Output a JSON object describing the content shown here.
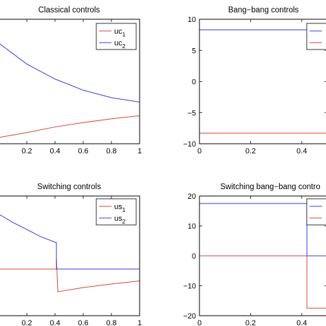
{
  "colors": {
    "series_red": "#d9423a",
    "series_blue": "#3b37d8",
    "axis": "#000000",
    "background": "#ffffff"
  },
  "chart_data": [
    {
      "type": "line",
      "title": "Classical controls",
      "xlabel": "",
      "ylabel": "",
      "xlim": [
        0,
        1
      ],
      "xticks": [
        0.2,
        0.4,
        0.6,
        0.8,
        1
      ],
      "xtick_labels": [
        "0.2",
        "0.4",
        "0.6",
        "0.8",
        "1"
      ],
      "yticks": [],
      "ytick_labels": [],
      "ylim": [
        0,
        1
      ],
      "grid": false,
      "legend": {
        "placement": "top-right",
        "entries": [
          {
            "base": "uc",
            "sub": "1"
          },
          {
            "base": "uc",
            "sub": "2"
          }
        ]
      },
      "series": [
        {
          "name": "uc1",
          "color": "#d9423a",
          "x": [
            0,
            0.2,
            0.4,
            0.6,
            0.8,
            1
          ],
          "y": [
            0.05,
            0.09,
            0.135,
            0.17,
            0.2,
            0.225
          ]
        },
        {
          "name": "uc2",
          "color": "#3b37d8",
          "x": [
            0,
            0.2,
            0.4,
            0.6,
            0.8,
            1
          ],
          "y": [
            0.81,
            0.64,
            0.52,
            0.43,
            0.37,
            0.335
          ]
        }
      ]
    },
    {
      "type": "line",
      "title": "Bang−bang controls",
      "xlabel": "",
      "ylabel": "",
      "xlim": [
        0,
        0.5
      ],
      "xticks": [
        0,
        0.2,
        0.4
      ],
      "xtick_labels": [
        "0",
        "0.2",
        "0.4"
      ],
      "yticks": [
        10,
        5,
        0,
        -5,
        -10
      ],
      "ytick_labels": [
        "10",
        "5",
        "0",
        "−5",
        "−10"
      ],
      "ylim": [
        -10,
        10
      ],
      "grid": false,
      "legend": {
        "placement": "top-right",
        "entries": []
      },
      "series": [
        {
          "color": "#3b37d8",
          "x": [
            0,
            0.5
          ],
          "y": [
            8.3,
            8.3
          ]
        },
        {
          "color": "#d9423a",
          "x": [
            0,
            0.5
          ],
          "y": [
            -8.3,
            -8.3
          ]
        }
      ]
    },
    {
      "type": "line",
      "title": "Switching controls",
      "xlabel": "",
      "ylabel": "",
      "xlim": [
        0,
        1
      ],
      "xticks": [
        0.2,
        0.4,
        0.6,
        0.8,
        1
      ],
      "xtick_labels": [
        "0.2",
        "0.4",
        "0.6",
        "0.8",
        "1"
      ],
      "yticks": [],
      "ytick_labels": [],
      "ylim": [
        0,
        1
      ],
      "grid": false,
      "legend": {
        "placement": "top-right",
        "entries": [
          {
            "base": "us",
            "sub": "1"
          },
          {
            "base": "us",
            "sub": "2"
          }
        ]
      },
      "series": [
        {
          "name": "us1",
          "color": "#d9423a",
          "x": [
            0,
            0.41,
            0.41,
            0.42,
            0.6,
            0.8,
            1
          ],
          "y": [
            0.39,
            0.39,
            0.48,
            0.2,
            0.235,
            0.265,
            0.29
          ]
        },
        {
          "name": "us2",
          "color": "#3b37d8",
          "x": [
            0,
            0.1,
            0.2,
            0.3,
            0.41,
            0.41,
            1
          ],
          "y": [
            0.85,
            0.78,
            0.72,
            0.66,
            0.61,
            0.39,
            0.39
          ]
        }
      ]
    },
    {
      "type": "line",
      "title": "Switching bang−bang contro",
      "xlabel": "",
      "ylabel": "",
      "xlim": [
        0,
        0.5
      ],
      "xticks": [
        0,
        0.2,
        0.4
      ],
      "xtick_labels": [
        "0",
        "0.2",
        "0.4"
      ],
      "yticks": [
        20,
        10,
        0,
        -10,
        -20
      ],
      "ytick_labels": [
        "20",
        "10",
        "0",
        "−10",
        "−20"
      ],
      "ylim": [
        -20,
        20
      ],
      "grid": false,
      "legend": {
        "placement": "top-right",
        "entries": []
      },
      "series": [
        {
          "color": "#3b37d8",
          "x": [
            0,
            0.42,
            0.42,
            0.5
          ],
          "y": [
            17.5,
            17.5,
            0,
            0
          ]
        },
        {
          "color": "#d9423a",
          "x": [
            0,
            0.42,
            0.42,
            0.5
          ],
          "y": [
            0,
            0,
            -17.5,
            -17.5
          ]
        }
      ]
    }
  ]
}
